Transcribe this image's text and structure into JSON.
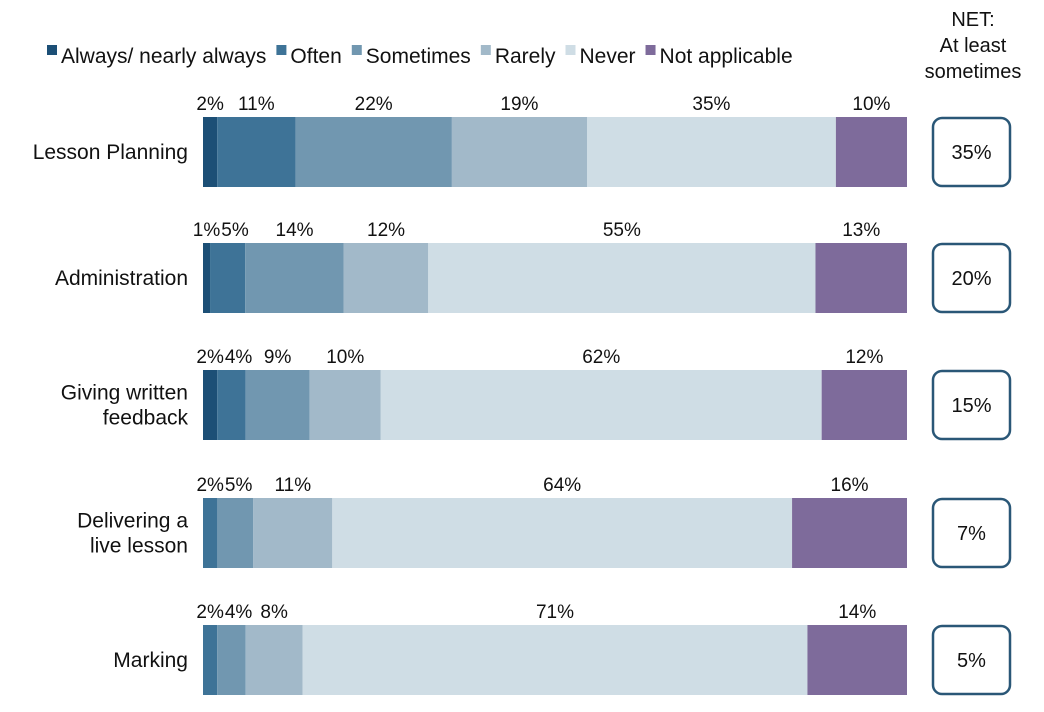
{
  "chart_data": {
    "type": "bar",
    "orientation": "horizontal",
    "stacked": true,
    "normalized": true,
    "legend_position": "top",
    "grid": false,
    "categories": [
      [
        "Lesson Planning"
      ],
      [
        "Administration"
      ],
      [
        "Giving written",
        "feedback"
      ],
      [
        "Delivering a",
        "live lesson"
      ],
      [
        "Marking"
      ]
    ],
    "series": [
      {
        "name": "Always/ nearly always",
        "color": "#1c4f76",
        "values": [
          2,
          1,
          2,
          0,
          0
        ],
        "labels": [
          "2%",
          "1%",
          "2%",
          "",
          ""
        ]
      },
      {
        "name": "Often",
        "color": "#3e7397",
        "values": [
          11,
          5,
          4,
          2,
          2
        ],
        "labels": [
          "11%",
          "5%",
          "4%",
          "2%",
          "2%"
        ]
      },
      {
        "name": "Sometimes",
        "color": "#7197b0",
        "values": [
          22,
          14,
          9,
          5,
          4
        ],
        "labels": [
          "22%",
          "14%",
          "9%",
          "5%",
          "4%"
        ]
      },
      {
        "name": "Rarely",
        "color": "#a2b9c9",
        "values": [
          19,
          12,
          10,
          11,
          8
        ],
        "labels": [
          "19%",
          "12%",
          "10%",
          "11%",
          "8%"
        ]
      },
      {
        "name": "Never",
        "color": "#cfdde5",
        "values": [
          35,
          55,
          62,
          64,
          71
        ],
        "labels": [
          "35%",
          "55%",
          "62%",
          "64%",
          "71%"
        ]
      },
      {
        "name": "Not applicable",
        "color": "#7e6b9b",
        "values": [
          10,
          13,
          12,
          16,
          14
        ],
        "labels": [
          "10%",
          "13%",
          "12%",
          "16%",
          "14%"
        ]
      }
    ],
    "net": {
      "title_lines": [
        "NET:",
        "At least",
        "sometimes"
      ],
      "values": [
        "35%",
        "20%",
        "15%",
        "7%",
        "5%"
      ],
      "box_border_color": "#2a5777"
    }
  }
}
